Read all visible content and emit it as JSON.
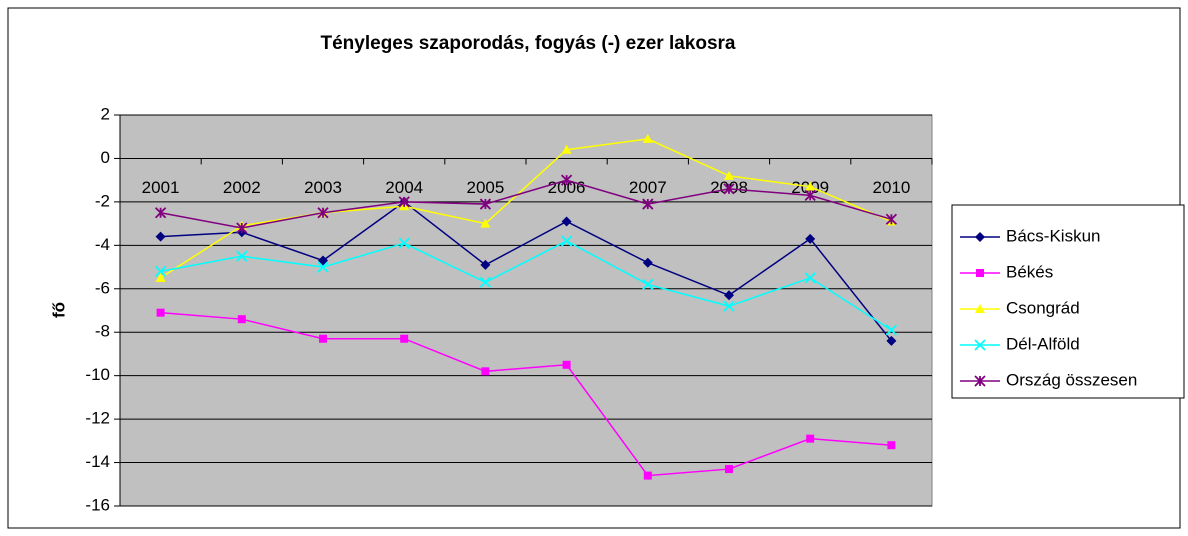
{
  "chart_data": {
    "type": "line",
    "title": "Tényleges szaporodás, fogyás (-) ezer lakosra",
    "y_label": "fő",
    "categories": [
      "2001",
      "2002",
      "2003",
      "2004",
      "2005",
      "2006",
      "2007",
      "2008",
      "2009",
      "2010"
    ],
    "series": [
      {
        "name": "Bács-Kiskun",
        "color": "#000080",
        "marker": "diamond",
        "values": [
          -3.6,
          -3.4,
          -4.7,
          -2.0,
          -4.9,
          -2.9,
          -4.8,
          -6.3,
          -3.7,
          -8.4
        ]
      },
      {
        "name": "Békés",
        "color": "#ff00ff",
        "marker": "square",
        "values": [
          -7.1,
          -7.4,
          -8.3,
          -8.3,
          -9.8,
          -9.5,
          -14.6,
          -14.3,
          -12.9,
          -13.2
        ]
      },
      {
        "name": "Csongrád",
        "color": "#ffff00",
        "marker": "triangle",
        "values": [
          -5.5,
          -3.1,
          -2.5,
          -2.2,
          -3.0,
          0.4,
          0.9,
          -0.8,
          -1.3,
          -2.9
        ]
      },
      {
        "name": "Dél-Alföld",
        "color": "#00ffff",
        "marker": "x",
        "values": [
          -5.2,
          -4.5,
          -5.0,
          -3.9,
          -5.7,
          -3.8,
          -5.8,
          -6.8,
          -5.5,
          -7.9
        ]
      },
      {
        "name": "Ország összesen",
        "color": "#800080",
        "marker": "star",
        "values": [
          -2.5,
          -3.2,
          -2.5,
          -2.0,
          -2.1,
          -1.0,
          -2.1,
          -1.4,
          -1.7,
          -2.8
        ]
      }
    ],
    "ylim": [
      -16,
      2
    ],
    "yticks": [
      -16,
      -14,
      -12,
      -10,
      -8,
      -6,
      -4,
      -2,
      0,
      2
    ],
    "grid": true,
    "legend": "right",
    "background": "#c0c0c0"
  }
}
